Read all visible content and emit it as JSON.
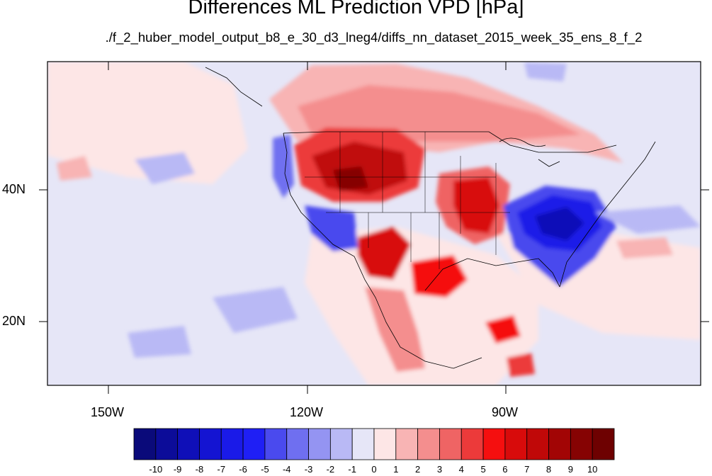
{
  "figure": {
    "title": "Differences ML Prediction VPD [hPa]",
    "subtitle": "./f_2_huber_model_output_b8_e_30_d3_lneg4/diffs_nn_dataset_2015_week_35_ens_8_f_2"
  },
  "map_axes": {
    "lon_ticks": [
      "150W",
      "120W",
      "90W"
    ],
    "lat_ticks": [
      "40N",
      "20N"
    ],
    "lon_range_deg": [
      -159,
      -61
    ],
    "lat_range_deg": [
      10,
      59
    ]
  },
  "colorbar": {
    "labels": [
      "-10",
      "-9",
      "-8",
      "-7",
      "-6",
      "-5",
      "-4",
      "-3",
      "-2",
      "-1",
      "0",
      "1",
      "2",
      "3",
      "4",
      "5",
      "6",
      "7",
      "8",
      "9",
      "10"
    ],
    "colors": [
      "#0a0a7a",
      "#0c0c99",
      "#0f0fb8",
      "#1414d2",
      "#1a1ae8",
      "#1f1ff5",
      "#4a4aee",
      "#6f6ff0",
      "#9494f2",
      "#b9b9f5",
      "#e6e6f7",
      "#fde6e6",
      "#f8b4b4",
      "#f48e8e",
      "#ef6464",
      "#ec3a3a",
      "#f50f0f",
      "#d80b0b",
      "#c00808",
      "#a20505",
      "#860303",
      "#6e0101"
    ]
  }
}
